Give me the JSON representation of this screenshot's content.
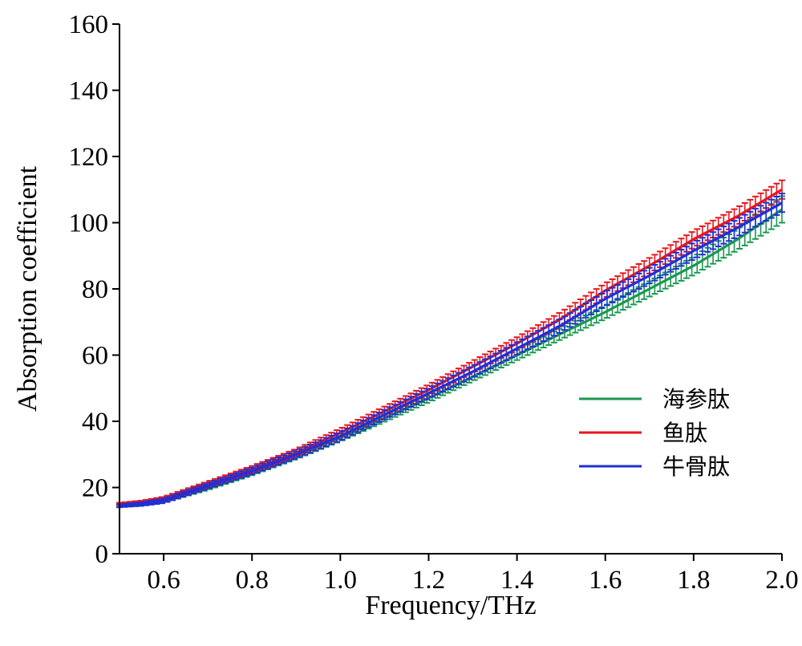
{
  "chart_data": {
    "type": "line",
    "title": "",
    "xlabel": "Frequency/THz",
    "ylabel": "Absorption coefficient",
    "xlim": [
      0.5,
      2.0
    ],
    "ylim": [
      0,
      160
    ],
    "x_ticks": [
      0.6,
      0.8,
      1.0,
      1.2,
      1.4,
      1.6,
      1.8,
      2.0
    ],
    "x_tick_labels": [
      "0.6",
      "0.8",
      "1.0",
      "1.2",
      "1.4",
      "1.6",
      "1.8",
      "2.0"
    ],
    "y_ticks": [
      0,
      20,
      40,
      60,
      80,
      100,
      120,
      140,
      160
    ],
    "y_tick_labels": [
      "0",
      "20",
      "40",
      "60",
      "80",
      "100",
      "120",
      "140",
      "160"
    ],
    "grid": false,
    "legend_position": "right",
    "error_bars": true,
    "x": [
      0.5,
      0.55,
      0.6,
      0.7,
      0.8,
      0.9,
      1.0,
      1.1,
      1.2,
      1.3,
      1.4,
      1.5,
      1.6,
      1.7,
      1.8,
      1.9,
      2.0
    ],
    "series": [
      {
        "name": "海参肽",
        "color": "#1a9850",
        "values": [
          14.5,
          15,
          16,
          20,
          24.5,
          29.5,
          35,
          41,
          47,
          53.5,
          60,
          66.5,
          73,
          80,
          87,
          95,
          104
        ],
        "errors": [
          0.5,
          0.5,
          0.6,
          0.7,
          0.8,
          0.9,
          1.0,
          1.1,
          1.2,
          1.3,
          1.5,
          1.7,
          2.0,
          2.3,
          2.7,
          3.2,
          4.0
        ]
      },
      {
        "name": "鱼肽",
        "color": "#e8161d",
        "values": [
          15,
          15.5,
          16.5,
          21,
          25.5,
          30.5,
          36.5,
          43,
          49.5,
          56.5,
          63.5,
          71,
          79.5,
          87,
          95,
          102,
          110
        ]
      },
      {
        "name": "牛骨肽",
        "color": "#1f2fd6",
        "values": [
          14.5,
          15,
          16,
          20.5,
          25,
          30,
          35.5,
          42,
          48.5,
          55,
          62,
          69,
          77,
          84,
          91.5,
          98.5,
          106
        ]
      }
    ]
  }
}
